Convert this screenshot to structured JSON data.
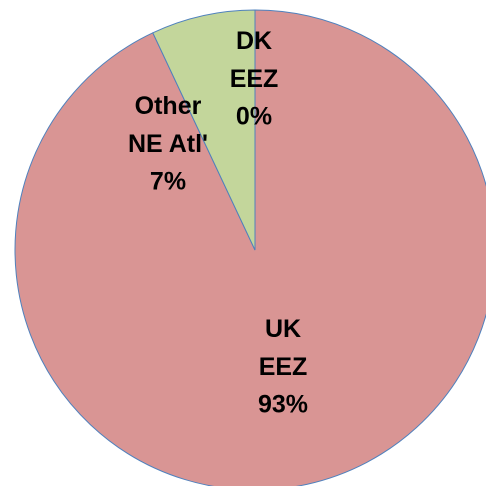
{
  "chart_data": {
    "type": "pie",
    "categories": [
      "UK EEZ",
      "Other NE Atl'",
      "DK EEZ"
    ],
    "values": [
      93,
      7,
      0
    ],
    "value_labels": [
      "93%",
      "7%",
      "0%"
    ],
    "colors": [
      "#d99594",
      "#c3d69b",
      "#9bbb59"
    ]
  }
}
